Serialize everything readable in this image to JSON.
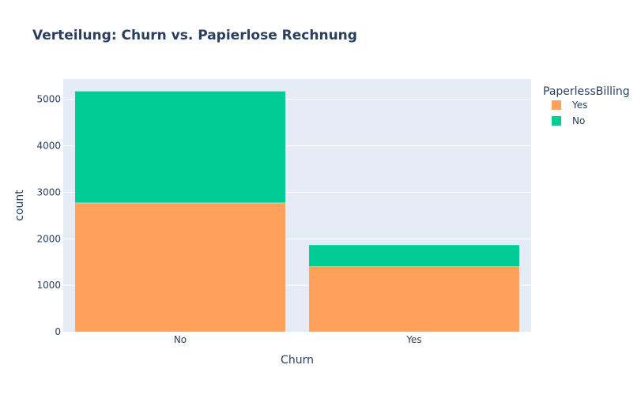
{
  "chart_data": {
    "type": "bar",
    "barmode": "stack",
    "title": "Verteilung: Churn vs. Papierlose Rechnung",
    "xlabel": "Churn",
    "ylabel": "count",
    "categories": [
      "No",
      "Yes"
    ],
    "ylim": [
      0,
      5436
    ],
    "yticks": [
      0,
      1000,
      2000,
      3000,
      4000,
      5000
    ],
    "grid": true,
    "legend": {
      "title": "PaperlessBilling",
      "position": "top-right"
    },
    "series": [
      {
        "name": "Yes",
        "color": "#FFA15A",
        "values": [
          2771,
          1400
        ]
      },
      {
        "name": "No",
        "color": "#00CC96",
        "values": [
          2403,
          469
        ]
      }
    ]
  }
}
